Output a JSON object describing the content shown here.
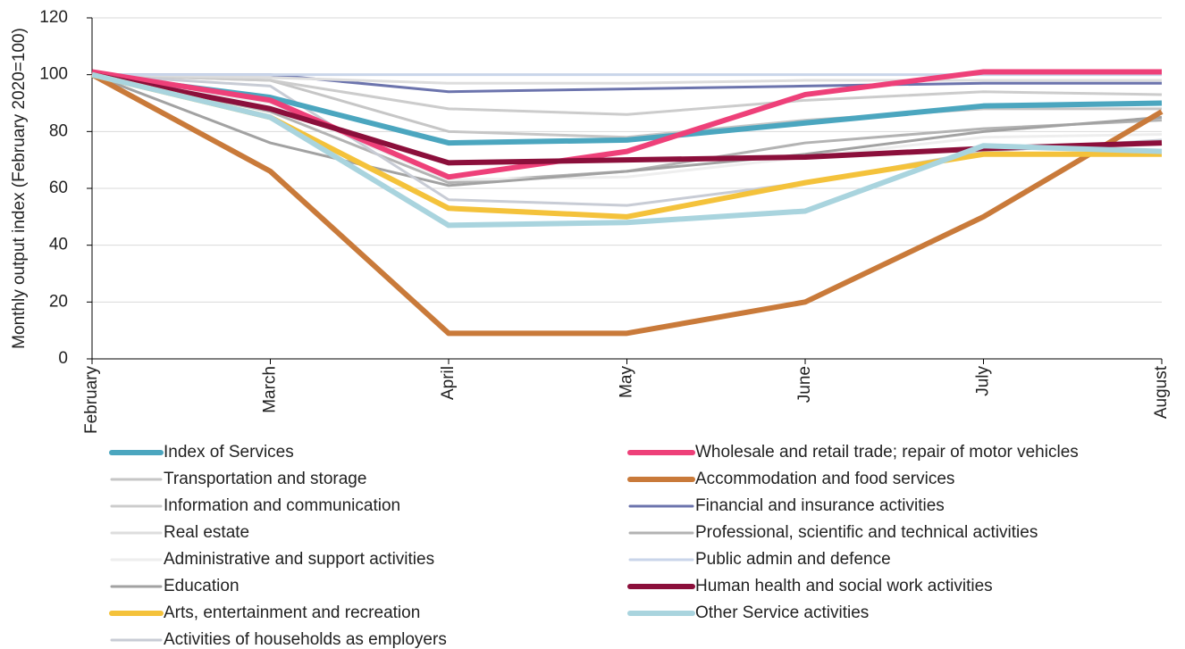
{
  "chart_data": {
    "type": "line",
    "ylabel": "Monthly output index (February 2020=100)",
    "categories": [
      "February",
      "March",
      "April",
      "May",
      "June",
      "July",
      "August"
    ],
    "ylim": [
      0,
      120
    ],
    "yticks": [
      0,
      20,
      40,
      60,
      80,
      100,
      120
    ],
    "grid": true,
    "series": [
      {
        "name": "Index of Services",
        "color": "#4ba6bf",
        "linewidth": 6,
        "values": [
          100,
          92,
          76,
          77,
          83,
          89,
          90
        ]
      },
      {
        "name": "Wholesale and retail trade; repair of motor vehicles",
        "color": "#ee4079",
        "linewidth": 6,
        "values": [
          101,
          91,
          64,
          73,
          93,
          101,
          101
        ]
      },
      {
        "name": "Transportation and storage",
        "color": "#c6c6c6",
        "linewidth": 3,
        "values": [
          100,
          98,
          80,
          78,
          84,
          88,
          88
        ]
      },
      {
        "name": "Accommodation and food services",
        "color": "#c97a3a",
        "linewidth": 6,
        "values": [
          100,
          66,
          9,
          9,
          20,
          50,
          87
        ]
      },
      {
        "name": "Information and communication",
        "color": "#cccccc",
        "linewidth": 3,
        "values": [
          100,
          98,
          88,
          86,
          91,
          94,
          93
        ]
      },
      {
        "name": "Financial and insurance activities",
        "color": "#6c74ad",
        "linewidth": 3,
        "values": [
          100,
          100,
          94,
          95,
          96,
          97,
          97
        ]
      },
      {
        "name": "Real estate",
        "color": "#dddddd",
        "linewidth": 3,
        "values": [
          100,
          99,
          97,
          97,
          98,
          98,
          98
        ]
      },
      {
        "name": "Professional, scientific and technical activities",
        "color": "#b3b3b3",
        "linewidth": 3,
        "values": [
          100,
          87,
          62,
          66,
          76,
          81,
          84
        ]
      },
      {
        "name": "Administrative and support activities",
        "color": "#eeeeee",
        "linewidth": 3,
        "values": [
          100,
          90,
          63,
          64,
          71,
          78,
          79
        ]
      },
      {
        "name": "Public admin and defence",
        "color": "#c9d5ea",
        "linewidth": 3,
        "values": [
          100,
          100,
          100,
          100,
          100,
          100,
          100
        ]
      },
      {
        "name": "Education",
        "color": "#a2a2a2",
        "linewidth": 3,
        "values": [
          100,
          76,
          61,
          66,
          72,
          80,
          85
        ]
      },
      {
        "name": "Human health and social work activities",
        "color": "#8b0f3b",
        "linewidth": 6,
        "values": [
          100,
          88,
          69,
          70,
          71,
          74,
          76
        ]
      },
      {
        "name": "Arts, entertainment and recreation",
        "color": "#f4c23b",
        "linewidth": 6,
        "values": [
          100,
          85,
          53,
          50,
          62,
          72,
          72
        ]
      },
      {
        "name": "Other Service activities",
        "color": "#a9d4de",
        "linewidth": 6,
        "values": [
          100,
          85,
          47,
          48,
          52,
          75,
          73
        ]
      },
      {
        "name": "Activities of households as employers",
        "color": "#c8ccd5",
        "linewidth": 3,
        "values": [
          100,
          96,
          56,
          54,
          62,
          73,
          77
        ]
      }
    ]
  }
}
